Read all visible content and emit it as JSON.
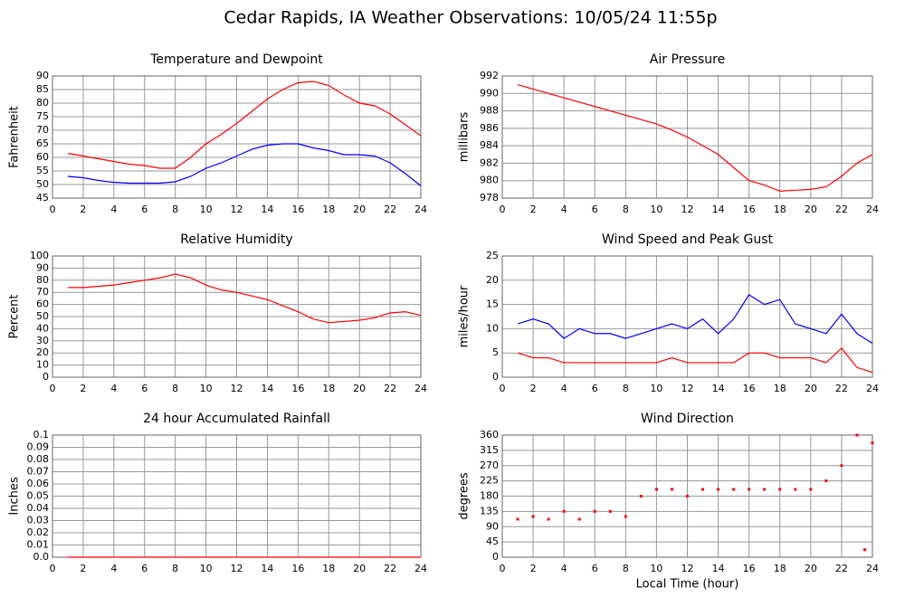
{
  "title": "Cedar Rapids, IA Weather Observations: 10/05/24 11:55p",
  "chart_data": [
    {
      "type": "line",
      "title": "Temperature and Dewpoint",
      "ylabel": "Fahrenheit",
      "x": [
        1,
        2,
        3,
        4,
        5,
        6,
        7,
        8,
        9,
        10,
        11,
        12,
        13,
        14,
        15,
        16,
        17,
        18,
        19,
        20,
        21,
        22,
        23,
        24
      ],
      "series": [
        {
          "color": "#ff0000",
          "values": [
            61.5,
            60.5,
            59.5,
            58.5,
            57.5,
            57,
            56,
            56,
            60,
            65,
            68.5,
            72.5,
            77,
            81.5,
            85,
            87.5,
            88,
            86.5,
            83,
            80,
            79,
            76,
            72,
            68
          ]
        },
        {
          "color": "#0000ff",
          "values": [
            53,
            52.5,
            51.5,
            50.8,
            50.5,
            50.5,
            50.5,
            51,
            53,
            56,
            58,
            60.5,
            63,
            64.5,
            65,
            65,
            63.5,
            62.5,
            61,
            61,
            60.5,
            58,
            54,
            49.5
          ]
        }
      ],
      "xlim": [
        0,
        24
      ],
      "xticks": [
        0,
        2,
        4,
        6,
        8,
        10,
        12,
        14,
        16,
        18,
        20,
        22,
        24
      ],
      "ylim": [
        45,
        90
      ],
      "yticks": [
        45,
        50,
        55,
        60,
        65,
        70,
        75,
        80,
        85,
        90
      ],
      "grid": true
    },
    {
      "type": "line",
      "title": "Air Pressure",
      "ylabel": "millibars",
      "x": [
        1,
        2,
        3,
        4,
        5,
        6,
        7,
        8,
        9,
        10,
        11,
        12,
        13,
        14,
        15,
        16,
        17,
        18,
        19,
        20,
        21,
        22,
        23,
        24
      ],
      "series": [
        {
          "color": "#ff0000",
          "values": [
            991,
            990.5,
            990,
            989.5,
            989,
            988.5,
            988,
            987.5,
            987,
            986.5,
            985.8,
            985,
            984,
            983,
            981.5,
            980,
            979.5,
            978.8,
            978.9,
            979,
            979.3,
            980.5,
            982,
            983
          ]
        }
      ],
      "xlim": [
        0,
        24
      ],
      "xticks": [
        0,
        2,
        4,
        6,
        8,
        10,
        12,
        14,
        16,
        18,
        20,
        22,
        24
      ],
      "ylim": [
        978,
        992
      ],
      "yticks": [
        978,
        980,
        982,
        984,
        986,
        988,
        990,
        992
      ],
      "grid": true
    },
    {
      "type": "line",
      "title": "Relative Humidity",
      "ylabel": "Percent",
      "x": [
        1,
        2,
        3,
        4,
        5,
        6,
        7,
        8,
        9,
        10,
        11,
        12,
        13,
        14,
        15,
        16,
        17,
        18,
        19,
        20,
        21,
        22,
        23,
        24
      ],
      "series": [
        {
          "color": "#ff0000",
          "values": [
            74,
            74,
            75,
            76,
            78,
            80,
            82,
            85,
            82,
            76,
            72,
            70,
            67,
            64,
            59,
            54,
            48,
            45,
            46,
            47,
            49,
            53,
            54,
            51
          ]
        }
      ],
      "xlim": [
        0,
        24
      ],
      "xticks": [
        0,
        2,
        4,
        6,
        8,
        10,
        12,
        14,
        16,
        18,
        20,
        22,
        24
      ],
      "ylim": [
        0,
        100
      ],
      "yticks": [
        0,
        10,
        20,
        30,
        40,
        50,
        60,
        70,
        80,
        90,
        100
      ],
      "grid": true
    },
    {
      "type": "line",
      "title": "Wind Speed and Peak Gust",
      "ylabel": "miles/hour",
      "x": [
        1,
        2,
        3,
        4,
        5,
        6,
        7,
        8,
        9,
        10,
        11,
        12,
        13,
        14,
        15,
        16,
        17,
        18,
        19,
        20,
        21,
        22,
        23,
        24
      ],
      "series": [
        {
          "color": "#0000ff",
          "values": [
            11,
            12,
            11,
            8,
            10,
            9,
            9,
            8,
            9,
            10,
            11,
            10,
            12,
            9,
            12,
            17,
            15,
            16,
            11,
            10,
            9,
            13,
            9,
            7
          ]
        },
        {
          "color": "#ff0000",
          "values": [
            5,
            4,
            4,
            3,
            3,
            3,
            3,
            3,
            3,
            3,
            4,
            3,
            3,
            3,
            3,
            5,
            5,
            4,
            4,
            4,
            3,
            6,
            2,
            1
          ]
        }
      ],
      "xlim": [
        0,
        24
      ],
      "xticks": [
        0,
        2,
        4,
        6,
        8,
        10,
        12,
        14,
        16,
        18,
        20,
        22,
        24
      ],
      "ylim": [
        0,
        25
      ],
      "yticks": [
        0,
        5,
        10,
        15,
        20,
        25
      ],
      "grid": true
    },
    {
      "type": "line",
      "title": "24 hour Accumulated Rainfall",
      "ylabel": "Inches",
      "x": [
        1,
        2,
        3,
        4,
        5,
        6,
        7,
        8,
        9,
        10,
        11,
        12,
        13,
        14,
        15,
        16,
        17,
        18,
        19,
        20,
        21,
        22,
        23,
        24
      ],
      "series": [
        {
          "color": "#ff0000",
          "values": [
            0,
            0,
            0,
            0,
            0,
            0,
            0,
            0,
            0,
            0,
            0,
            0,
            0,
            0,
            0,
            0,
            0,
            0,
            0,
            0,
            0,
            0,
            0,
            0
          ]
        }
      ],
      "xlim": [
        0,
        24
      ],
      "xticks": [
        0,
        2,
        4,
        6,
        8,
        10,
        12,
        14,
        16,
        18,
        20,
        22,
        24
      ],
      "ylim": [
        0,
        0.1
      ],
      "yticks": [
        {
          "value": 0,
          "label": "0.0"
        },
        0.01,
        0.02,
        0.03,
        0.04,
        0.05,
        0.06,
        0.07,
        0.08,
        0.09,
        0.1
      ],
      "grid": true
    },
    {
      "type": "scatter",
      "title": "Wind Direction",
      "ylabel": "degrees",
      "xlabel": "Local Time (hour)",
      "x": [
        1,
        2,
        3,
        4,
        5,
        6,
        7,
        8,
        9,
        10,
        11,
        12,
        13,
        14,
        15,
        16,
        17,
        18,
        19,
        20,
        21,
        22,
        23,
        23.5,
        24
      ],
      "series": [
        {
          "color": "#ff0000",
          "values": [
            112,
            120,
            112,
            135,
            112,
            135,
            135,
            120,
            180,
            200,
            200,
            180,
            200,
            200,
            200,
            200,
            200,
            200,
            200,
            200,
            225,
            270,
            360,
            22,
            337
          ]
        }
      ],
      "xlim": [
        0,
        24
      ],
      "xticks": [
        0,
        2,
        4,
        6,
        8,
        10,
        12,
        14,
        16,
        18,
        20,
        22,
        24
      ],
      "ylim": [
        0,
        360
      ],
      "yticks": [
        0,
        45,
        90,
        135,
        180,
        225,
        270,
        315,
        360
      ],
      "grid": true
    }
  ]
}
